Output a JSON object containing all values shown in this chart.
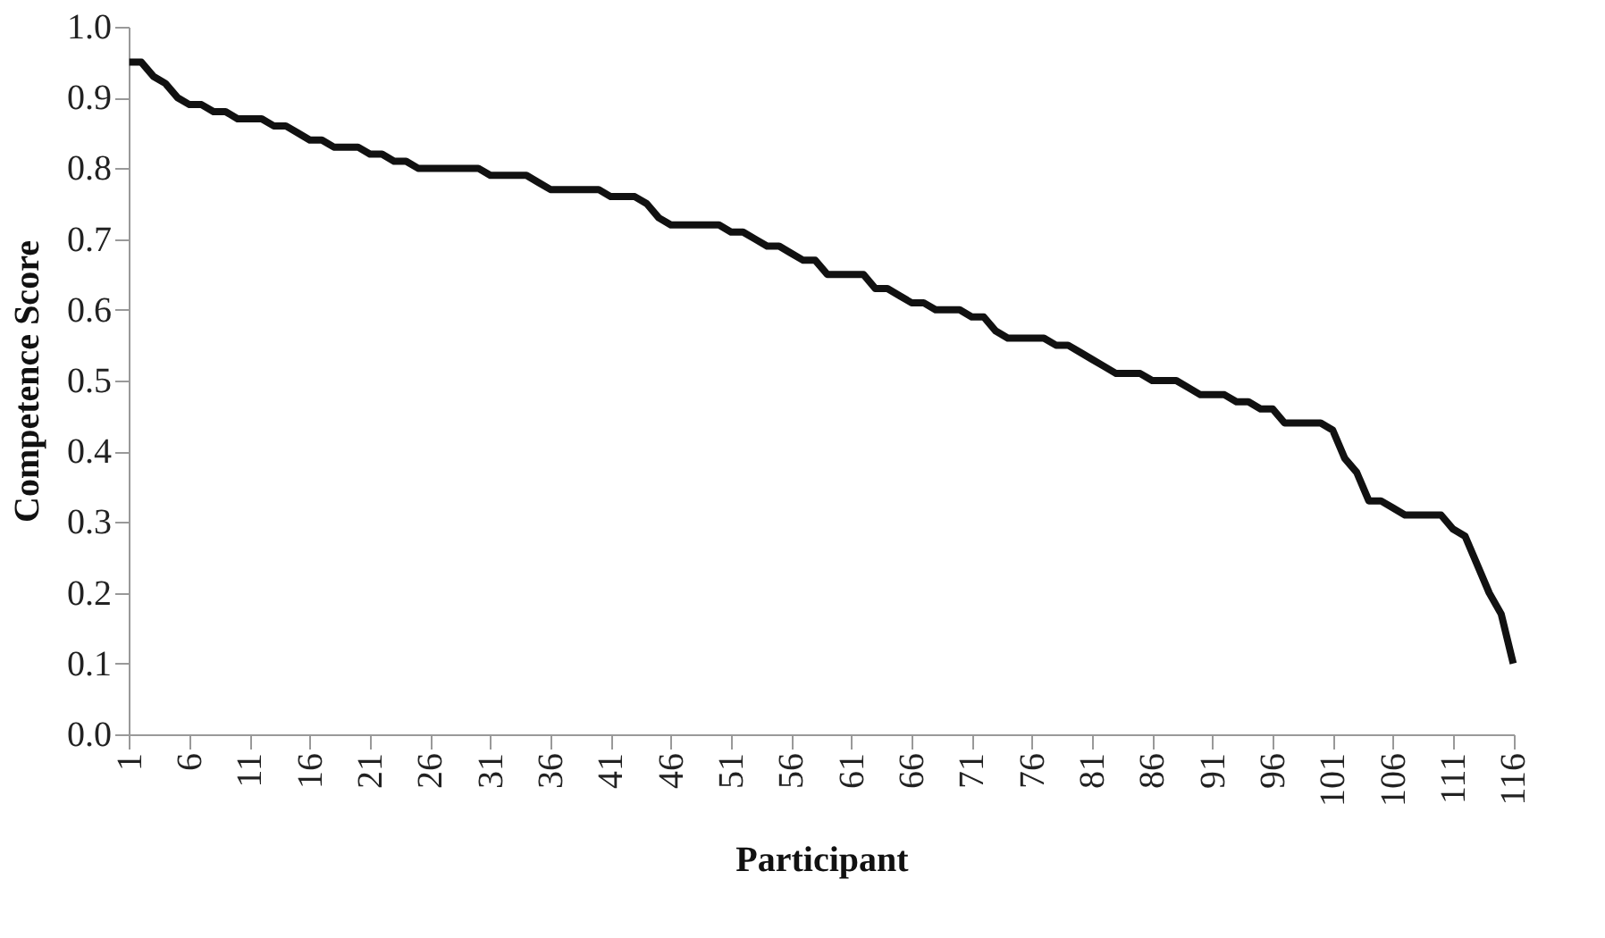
{
  "chart_data": {
    "type": "line",
    "xlabel": "Participant",
    "ylabel": "Competence Score",
    "categories": [
      "1",
      null,
      null,
      null,
      null,
      "6",
      null,
      null,
      null,
      null,
      "11",
      null,
      null,
      null,
      null,
      "16",
      null,
      null,
      null,
      null,
      "21",
      null,
      null,
      null,
      null,
      "26",
      null,
      null,
      null,
      null,
      "31",
      null,
      null,
      null,
      null,
      "36",
      null,
      null,
      null,
      null,
      "41",
      null,
      null,
      null,
      null,
      "46",
      null,
      null,
      null,
      null,
      "51",
      null,
      null,
      null,
      null,
      "56",
      null,
      null,
      null,
      null,
      "61",
      null,
      null,
      null,
      null,
      "66",
      null,
      null,
      null,
      null,
      "71",
      null,
      null,
      null,
      null,
      "76",
      null,
      null,
      null,
      null,
      "81",
      null,
      null,
      null,
      null,
      "86",
      null,
      null,
      null,
      null,
      "91",
      null,
      null,
      null,
      null,
      "96",
      null,
      null,
      null,
      null,
      "101",
      null,
      null,
      null,
      null,
      "106",
      null,
      null,
      null,
      null,
      "111",
      null,
      null,
      null,
      null,
      "116"
    ],
    "series": [
      {
        "color": "#111111",
        "values": [
          0.95,
          0.95,
          0.93,
          0.92,
          0.9,
          0.89,
          0.89,
          0.88,
          0.88,
          0.87,
          0.87,
          0.87,
          0.86,
          0.86,
          0.85,
          0.84,
          0.84,
          0.83,
          0.83,
          0.83,
          0.82,
          0.82,
          0.81,
          0.81,
          0.8,
          0.8,
          0.8,
          0.8,
          0.8,
          0.8,
          0.79,
          0.79,
          0.79,
          0.79,
          0.78,
          0.77,
          0.77,
          0.77,
          0.77,
          0.77,
          0.76,
          0.76,
          0.76,
          0.75,
          0.73,
          0.72,
          0.72,
          0.72,
          0.72,
          0.72,
          0.71,
          0.71,
          0.7,
          0.69,
          0.69,
          0.68,
          0.67,
          0.67,
          0.65,
          0.65,
          0.65,
          0.65,
          0.63,
          0.63,
          0.62,
          0.61,
          0.61,
          0.6,
          0.6,
          0.6,
          0.59,
          0.59,
          0.57,
          0.56,
          0.56,
          0.56,
          0.56,
          0.55,
          0.55,
          0.54,
          0.53,
          0.52,
          0.51,
          0.51,
          0.51,
          0.5,
          0.5,
          0.5,
          0.49,
          0.48,
          0.48,
          0.48,
          0.47,
          0.47,
          0.46,
          0.46,
          0.44,
          0.44,
          0.44,
          0.44,
          0.43,
          0.39,
          0.37,
          0.33,
          0.33,
          0.32,
          0.31,
          0.31,
          0.31,
          0.31,
          0.29,
          0.28,
          0.24,
          0.2,
          0.17,
          0.1
        ]
      }
    ],
    "ylim": [
      0,
      1
    ],
    "yticks": [
      {
        "value": 0,
        "label": "0.0"
      },
      0.1,
      0.2,
      0.3,
      0.4,
      0.5,
      0.6,
      0.7,
      0.8,
      0.9,
      {
        "value": 1,
        "label": "1.0"
      }
    ],
    "grid": false,
    "legend": false,
    "marker": "none",
    "line_style": "solid"
  }
}
